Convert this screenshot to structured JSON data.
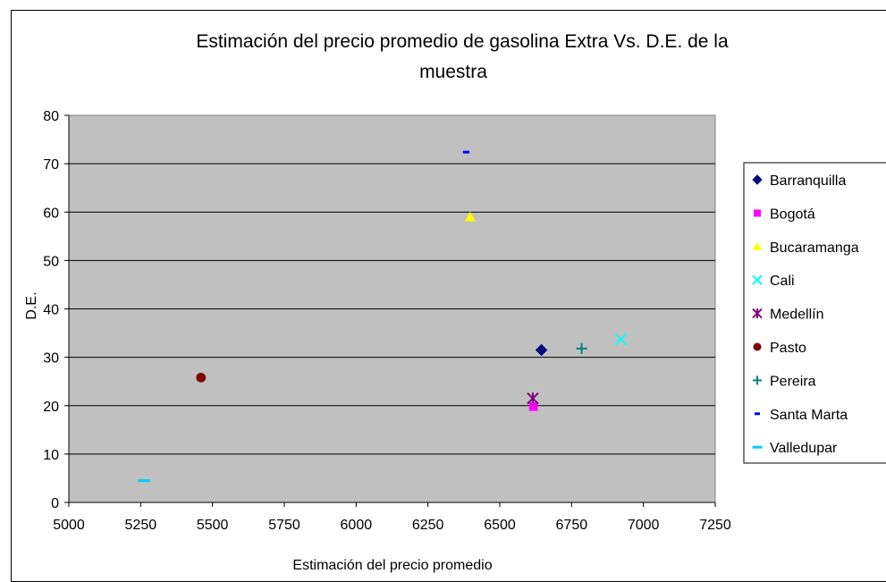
{
  "chart_data": {
    "type": "scatter",
    "title_lines": [
      "Estimación del precio promedio de gasolina Extra Vs. D.E. de la",
      "muestra"
    ],
    "xlabel": "Estimación del precio promedio",
    "ylabel": "D.E.",
    "xlim": [
      5000,
      7250
    ],
    "ylim": [
      0,
      80
    ],
    "x_ticks": [
      5000,
      5250,
      5500,
      5750,
      6000,
      6250,
      6500,
      6750,
      7000,
      7250
    ],
    "y_ticks": [
      0,
      10,
      20,
      30,
      40,
      50,
      60,
      70,
      80
    ],
    "grid": "horizontal",
    "plot_background": "#c0c0c0",
    "legend_position": "right",
    "series": [
      {
        "name": "Barranquilla",
        "marker": "diamond",
        "color": "#000080",
        "points": [
          [
            6645,
            31.5
          ]
        ]
      },
      {
        "name": "Bogotá",
        "marker": "square",
        "color": "#ff00ff",
        "points": [
          [
            6617,
            19.8
          ]
        ]
      },
      {
        "name": "Bucaramanga",
        "marker": "triangle",
        "color": "#ffff00",
        "points": [
          [
            6397,
            59
          ]
        ]
      },
      {
        "name": "Cali",
        "marker": "x",
        "color": "#00ffff",
        "points": [
          [
            6922,
            33.7
          ]
        ]
      },
      {
        "name": "Medellín",
        "marker": "star",
        "color": "#800080",
        "points": [
          [
            6615,
            21.5
          ]
        ]
      },
      {
        "name": "Pasto",
        "marker": "circle",
        "color": "#800000",
        "points": [
          [
            5460,
            25.8
          ]
        ]
      },
      {
        "name": "Pereira",
        "marker": "plus",
        "color": "#008080",
        "points": [
          [
            6785,
            31.8
          ]
        ]
      },
      {
        "name": "Santa Marta",
        "marker": "short-dash",
        "color": "#0000ff",
        "points": [
          [
            6383,
            72.4
          ]
        ]
      },
      {
        "name": "Valledupar",
        "marker": "long-dash",
        "color": "#00ccff",
        "points": [
          [
            5262,
            4.5
          ]
        ]
      }
    ]
  }
}
